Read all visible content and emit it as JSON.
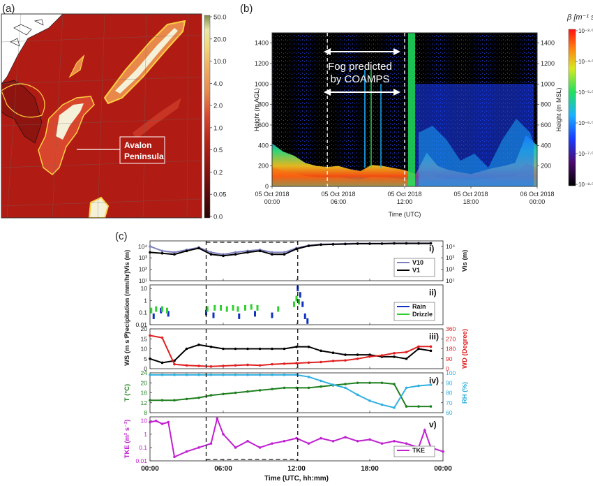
{
  "panel_a": {
    "label": "(a)",
    "annotation_line1": "Avalon",
    "annotation_line2": "Peninsula",
    "colorbar_ticks": [
      "50.0",
      "20.0",
      "10.0",
      "4.0",
      "2.0",
      "1.0",
      "0.5",
      "0.2",
      "0.05",
      "0.0"
    ],
    "colorbar_colors": [
      "#7a8c4a",
      "#e8e4a8",
      "#f2d97a",
      "#f0b060",
      "#e8884a",
      "#d9462e",
      "#b82418",
      "#8e1410",
      "#5a0a08",
      "#2a0404"
    ]
  },
  "panel_b": {
    "label": "(b)",
    "annotation_line1": "Fog predicted",
    "annotation_line2": "by COAMPS",
    "colorbar_label": "β [m⁻¹ sr⁻¹]",
    "colorbar_ticks": [
      "10⁻³·⁰",
      "10⁻⁴·⁰",
      "10⁻⁵·⁰",
      "10⁻⁶·⁰",
      "10⁻⁷·⁰",
      "10⁻⁸·⁰"
    ]
  },
  "panel_c": {
    "label": "(c)"
  },
  "chart_data": [
    {
      "type": "heatmap",
      "panel": "b",
      "ylabel": "Height (m AGL)",
      "y2label": "Height (m MSL)",
      "xlabel": "Time (UTC)",
      "x_ticks": [
        "05 Oct 2018|00:00",
        "05 Oct 2018|06:00",
        "05 Oct 2018|12:00",
        "05 Oct 2018|18:00",
        "06 Oct 2018|00:00"
      ],
      "y_ticks": [
        0,
        200,
        400,
        600,
        800,
        1000,
        1200,
        1400
      ],
      "y2_ticks": [
        200,
        400,
        600,
        800,
        1000,
        1200,
        1400
      ],
      "ylim": [
        0,
        1500
      ],
      "fog_window_hours": [
        5,
        12
      ],
      "fog_layer_top_m": [
        [
          0,
          420
        ],
        [
          1,
          340
        ],
        [
          2,
          300
        ],
        [
          3,
          230
        ],
        [
          4,
          200
        ],
        [
          5,
          190
        ],
        [
          6,
          200
        ],
        [
          7,
          170
        ],
        [
          8,
          150
        ],
        [
          9,
          210
        ],
        [
          10,
          200
        ],
        [
          11,
          180
        ],
        [
          12,
          160
        ],
        [
          13,
          120
        ],
        [
          14,
          330
        ],
        [
          15,
          200
        ],
        [
          16,
          160
        ],
        [
          17,
          140
        ],
        [
          18,
          120
        ],
        [
          19,
          150
        ],
        [
          20,
          180
        ],
        [
          21,
          200
        ],
        [
          22,
          230
        ],
        [
          23,
          500
        ],
        [
          24,
          400
        ]
      ]
    },
    {
      "type": "line",
      "panel": "c-i",
      "tag": "i)",
      "ylabel": "Vis (m)",
      "y2label": "Vis (m)",
      "yscale": "log",
      "ylim": [
        10,
        30000
      ],
      "y_ticks": [
        "10¹",
        "10²",
        "10³",
        "10⁴"
      ],
      "series": [
        {
          "name": "V10",
          "color": "#8080c0",
          "x": [
            0,
            1,
            2,
            3,
            4,
            5,
            6,
            7,
            8,
            9,
            10,
            11,
            12,
            13,
            14,
            15,
            16,
            17,
            18,
            19,
            20,
            21,
            22,
            23
          ],
          "values": [
            10000,
            4000,
            3000,
            5000,
            8000,
            3000,
            2000,
            3000,
            4000,
            5000,
            3000,
            3000,
            7000,
            12000,
            15000,
            16000,
            17000,
            18000,
            18000,
            18000,
            19000,
            19000,
            19000,
            19000
          ]
        },
        {
          "name": "V1",
          "color": "#000000",
          "x": [
            0,
            1,
            2,
            3,
            4,
            5,
            6,
            7,
            8,
            9,
            10,
            11,
            12,
            13,
            14,
            15,
            16,
            17,
            18,
            19,
            20,
            21,
            22,
            23
          ],
          "values": [
            3000,
            2500,
            2000,
            4000,
            7000,
            2000,
            1500,
            2000,
            3000,
            4000,
            2000,
            2000,
            6000,
            11000,
            14000,
            15000,
            16000,
            17000,
            17000,
            17000,
            18000,
            18000,
            18000,
            18000
          ]
        }
      ]
    },
    {
      "type": "scatter",
      "panel": "c-ii",
      "tag": "ii)",
      "ylabel": "Precipitation (mm/hr)",
      "yscale": "log",
      "ylim": [
        0.01,
        20
      ],
      "y_ticks": [
        "10",
        "1",
        "0.1",
        "0.01"
      ],
      "series": [
        {
          "name": "Rain",
          "color": "#1030c0",
          "x": [
            0.3,
            0.9,
            1.5,
            4.6,
            5.2,
            7.3,
            8.6,
            10.0,
            12.1,
            12.3,
            12.5,
            12.7,
            12.9
          ],
          "values": [
            0.05,
            0.15,
            0.08,
            0.1,
            0.06,
            0.05,
            0.08,
            0.06,
            10,
            3,
            0.5,
            0.05,
            0.02
          ]
        },
        {
          "name": "Drizzle",
          "color": "#30d030",
          "x": [
            0.1,
            0.5,
            1.0,
            1.4,
            4.7,
            5.3,
            5.8,
            6.3,
            6.8,
            7.2,
            7.8,
            8.3,
            8.8,
            10.5,
            11.8,
            12.0,
            12.2
          ],
          "values": [
            0.15,
            0.2,
            0.2,
            0.15,
            0.2,
            0.25,
            0.25,
            0.2,
            0.25,
            0.2,
            0.25,
            0.3,
            0.25,
            0.2,
            0.5,
            1.5,
            0.8
          ]
        }
      ]
    },
    {
      "type": "line",
      "panel": "c-iii",
      "tag": "iii)",
      "ylabel": "WS (m s⁻¹)",
      "y2label": "WD (Degree)",
      "ylim": [
        0,
        20
      ],
      "y2lim": [
        0,
        360
      ],
      "y_ticks": [
        0,
        5,
        10,
        15,
        20
      ],
      "y2_ticks": [
        0,
        90,
        180,
        270,
        360
      ],
      "series": [
        {
          "name": "WS",
          "color": "#000000",
          "x": [
            0,
            1,
            2,
            3,
            4,
            5,
            6,
            7,
            8,
            9,
            10,
            11,
            12,
            13,
            14,
            15,
            16,
            17,
            18,
            19,
            20,
            21,
            22,
            23
          ],
          "values": [
            5,
            3,
            4,
            10,
            12,
            11,
            10,
            10,
            10,
            10,
            10,
            10,
            11,
            11,
            9,
            8,
            7,
            7,
            7,
            6,
            6,
            5,
            10,
            9
          ]
        },
        {
          "name": "WD",
          "color": "#e02020",
          "axis": "right",
          "x": [
            0,
            1,
            2,
            3,
            4,
            5,
            6,
            7,
            8,
            9,
            10,
            11,
            12,
            13,
            14,
            15,
            16,
            17,
            18,
            19,
            20,
            21,
            22,
            23
          ],
          "values": [
            300,
            280,
            40,
            30,
            25,
            20,
            25,
            30,
            35,
            30,
            40,
            45,
            50,
            55,
            60,
            70,
            75,
            90,
            110,
            120,
            140,
            150,
            200,
            200
          ]
        }
      ]
    },
    {
      "type": "line",
      "panel": "c-iv",
      "tag": "iv)",
      "ylabel": "T (°C)",
      "y2label": "RH (%)",
      "ylim": [
        8,
        24
      ],
      "y2lim": [
        60,
        100
      ],
      "y_ticks": [
        8,
        12,
        16,
        20,
        24
      ],
      "y2_ticks": [
        60,
        70,
        80,
        90,
        100
      ],
      "series": [
        {
          "name": "T",
          "color": "#208020",
          "x": [
            0,
            1,
            2,
            3,
            4,
            5,
            6,
            7,
            8,
            9,
            10,
            11,
            12,
            13,
            14,
            15,
            16,
            17,
            18,
            19,
            20,
            21,
            22,
            23
          ],
          "values": [
            13,
            13,
            13,
            13.5,
            14,
            15,
            15.5,
            16,
            16.5,
            17,
            17.5,
            18,
            18,
            18,
            18.5,
            19,
            19.5,
            20,
            20,
            20,
            19.5,
            10.5,
            10.5,
            10.5
          ]
        },
        {
          "name": "RH",
          "color": "#30b0e0",
          "axis": "right",
          "x": [
            0,
            1,
            2,
            3,
            4,
            5,
            6,
            7,
            8,
            9,
            10,
            11,
            12,
            13,
            14,
            15,
            16,
            17,
            18,
            19,
            20,
            21,
            22,
            23
          ],
          "values": [
            98,
            98,
            98,
            98,
            98,
            98,
            98,
            98,
            98,
            98,
            98,
            98,
            98,
            96,
            92,
            88,
            85,
            78,
            72,
            68,
            65,
            85,
            87,
            88
          ]
        }
      ]
    },
    {
      "type": "line",
      "panel": "c-v",
      "tag": "v)",
      "ylabel": "TKE (m² s⁻²)",
      "yscale": "log",
      "ylim": [
        0.01,
        20
      ],
      "y_ticks": [
        "10",
        "1",
        "0.1",
        "0.01"
      ],
      "xlabel": "Time (UTC, hh:mm)",
      "x_ticks": [
        "00:00",
        "06:00",
        "12:00",
        "18:00",
        "00:00"
      ],
      "series": [
        {
          "name": "TKE",
          "color": "#c020d0",
          "x": [
            0,
            0.5,
            1,
            1.5,
            2,
            3,
            4,
            5,
            5.5,
            6,
            7,
            8,
            9,
            10,
            11,
            12,
            13,
            14,
            15,
            16,
            17,
            18,
            19,
            20,
            21,
            22,
            22.5,
            23,
            24
          ],
          "values": [
            8,
            10,
            6,
            8,
            0.02,
            0.05,
            0.1,
            0.2,
            15,
            1,
            0.1,
            0.3,
            0.1,
            0.2,
            0.3,
            0.5,
            0.2,
            0.5,
            0.3,
            0.6,
            0.3,
            0.4,
            0.2,
            0.3,
            0.2,
            0.1,
            2,
            0.1,
            0.05
          ]
        }
      ]
    }
  ]
}
